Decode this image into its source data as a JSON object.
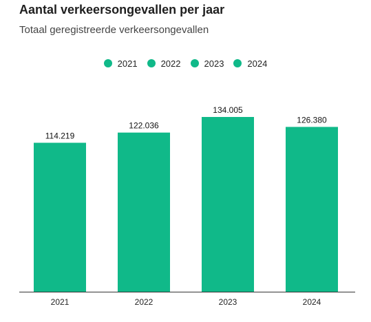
{
  "header": {
    "title": "Aantal verkeersongevallen per jaar",
    "subtitle": "Totaal geregistreerde verkeersongevallen"
  },
  "colors": {
    "bar": "#10b989",
    "axis": "#333333"
  },
  "legend": {
    "placement": "top-center",
    "items": [
      {
        "label": "2021",
        "color": "#10b989"
      },
      {
        "label": "2022",
        "color": "#10b989"
      },
      {
        "label": "2023",
        "color": "#10b989"
      },
      {
        "label": "2024",
        "color": "#10b989"
      }
    ]
  },
  "chart_data": {
    "type": "bar",
    "title": "Aantal verkeersongevallen per jaar",
    "subtitle": "Totaal geregistreerde verkeersongevallen",
    "categories": [
      "2021",
      "2022",
      "2023",
      "2024"
    ],
    "values": [
      114219,
      122036,
      134005,
      126380
    ],
    "value_labels": [
      "114.219",
      "122.036",
      "134.005",
      "126.380"
    ],
    "xlabel": "",
    "ylabel": "",
    "ylim": [
      0,
      134005
    ],
    "grid": false
  }
}
